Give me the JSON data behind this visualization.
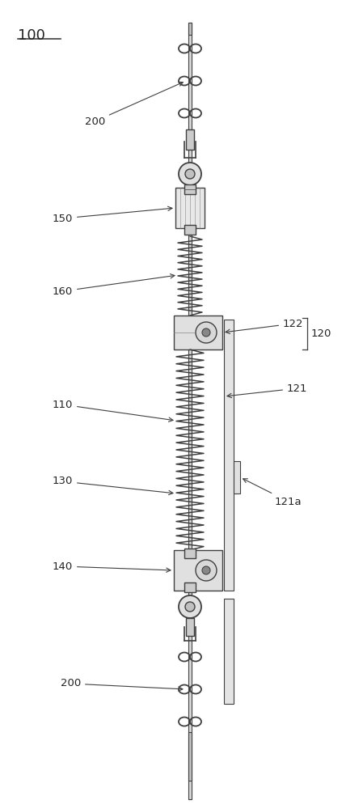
{
  "bg_color": "#ffffff",
  "line_color": "#404040",
  "label_color": "#222222",
  "fig_label": "100",
  "labels": {
    "200_top": "200",
    "150": "150",
    "160": "160",
    "122": "122",
    "120": "120",
    "121": "121",
    "110": "110",
    "130": "130",
    "121a": "121a",
    "140": "140",
    "200_bot": "200"
  },
  "figsize": [
    4.49,
    10.0
  ],
  "dpi": 100,
  "xlim": [
    0,
    449
  ],
  "ylim": [
    0,
    1000
  ]
}
